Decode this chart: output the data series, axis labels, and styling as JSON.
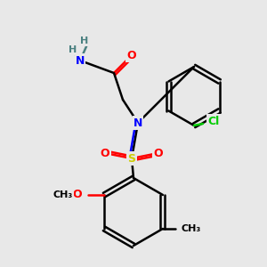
{
  "bg_color": "#e8e8e8",
  "bond_color": "#000000",
  "bond_lw": 1.8,
  "atom_colors": {
    "N": "#0000ff",
    "O": "#ff0000",
    "Cl": "#00cc00",
    "S": "#cccc00",
    "C": "#000000",
    "H": "#4a8080"
  },
  "font_size": 9,
  "font_size_small": 8
}
